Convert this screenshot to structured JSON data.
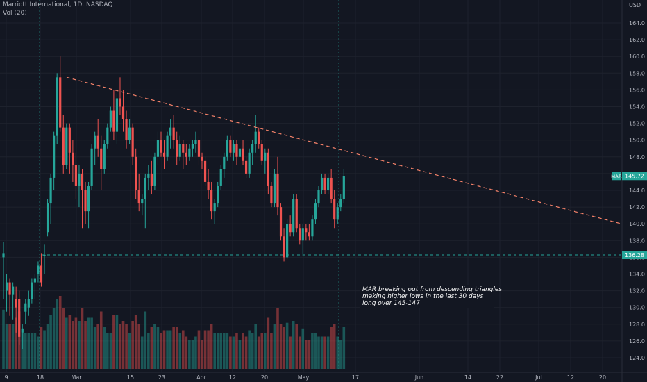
{
  "header": {
    "title": "Marriott International, 1D, NASDAQ",
    "volume_label": "Vol (20)",
    "currency": "USD"
  },
  "annotation": {
    "lines": [
      "MAR breaking out from descending triangles",
      "making higher lows in the last 30 days",
      "long over 145-147"
    ]
  },
  "price_tags": {
    "last_price": "145.72",
    "symbol": "MAR",
    "support": "136.28"
  },
  "colors": {
    "background": "#131722",
    "up": "#26a69a",
    "down": "#ef5350",
    "trendline": "#f7836a",
    "support": "#26a69a",
    "text": "#b2b5be"
  },
  "chart_data": {
    "type": "candlestick",
    "title": "Marriott International, 1D, NASDAQ",
    "y_axis": {
      "label": "USD",
      "range": [
        123,
        166
      ],
      "ticks": [
        124,
        126,
        128,
        130,
        132,
        134,
        136,
        138,
        140,
        142,
        144,
        146,
        148,
        150,
        152,
        154,
        156,
        158,
        160,
        162,
        164
      ]
    },
    "x_axis": {
      "tick_labels": [
        "9",
        "18",
        "Mar",
        "15",
        "23",
        "Apr",
        "12",
        "20",
        "May",
        "17",
        "Jun",
        "14",
        "22",
        "Jul",
        "12",
        "20"
      ]
    },
    "candles": [
      [
        136.0,
        137.8,
        131.0,
        136.5,
        1.0
      ],
      [
        132.0,
        134.0,
        129.5,
        133.0,
        1.0
      ],
      [
        133.0,
        133.5,
        129.0,
        131.5,
        1.0
      ],
      [
        131.5,
        133.0,
        128.5,
        132.5,
        1.0
      ],
      [
        131.0,
        132.5,
        127.0,
        130.0,
        1.0
      ],
      [
        131.0,
        132.0,
        125.5,
        126.5,
        1.0
      ],
      [
        127.0,
        128.0,
        125.0,
        127.5,
        1.0
      ],
      [
        129.5,
        131.0,
        128.0,
        130.5,
        1.0
      ],
      [
        130.0,
        132.0,
        129.0,
        131.0,
        1.0
      ],
      [
        131.0,
        133.5,
        130.5,
        133.0,
        1.0
      ],
      [
        133.0,
        134.0,
        131.0,
        133.5,
        1.0
      ],
      [
        134.0,
        135.5,
        133.0,
        135.0,
        1.0
      ],
      [
        135.0,
        136.5,
        132.5,
        133.0,
        1.0
      ],
      [
        136.2,
        137.5,
        134.0,
        136.3,
        1.0
      ],
      [
        139.0,
        143.0,
        138.5,
        142.5,
        1.0
      ],
      [
        142.5,
        146.0,
        140.0,
        145.5,
        1.0
      ],
      [
        145.5,
        151.0,
        144.0,
        150.5,
        1.0
      ],
      [
        150.5,
        158.0,
        149.5,
        157.5,
        1.0
      ],
      [
        157.5,
        160.0,
        151.0,
        151.5,
        1.0
      ],
      [
        151.5,
        153.0,
        146.0,
        147.0,
        1.0
      ],
      [
        147.0,
        152.0,
        146.5,
        151.5,
        1.0
      ],
      [
        151.5,
        152.0,
        146.0,
        148.5,
        1.0
      ],
      [
        148.5,
        150.0,
        145.0,
        147.0,
        1.0
      ],
      [
        147.0,
        148.5,
        143.0,
        144.5,
        1.0
      ],
      [
        144.5,
        147.0,
        142.0,
        146.0,
        1.0
      ],
      [
        146.0,
        146.5,
        139.5,
        144.0,
        1.0
      ],
      [
        144.0,
        145.0,
        140.0,
        141.5,
        1.0
      ],
      [
        141.5,
        145.0,
        139.5,
        144.5,
        1.0
      ],
      [
        144.5,
        149.5,
        144.0,
        149.0,
        1.0
      ],
      [
        149.0,
        151.0,
        147.0,
        150.5,
        1.0
      ],
      [
        150.5,
        152.5,
        148.0,
        149.0,
        1.0
      ],
      [
        149.0,
        150.5,
        144.0,
        146.5,
        1.0
      ],
      [
        146.5,
        150.0,
        146.0,
        149.5,
        1.0
      ],
      [
        149.5,
        152.0,
        149.0,
        151.5,
        1.0
      ],
      [
        151.5,
        154.0,
        151.0,
        153.5,
        1.0
      ],
      [
        153.5,
        156.0,
        150.0,
        151.0,
        1.0
      ],
      [
        151.0,
        155.5,
        149.5,
        155.0,
        1.0
      ],
      [
        155.0,
        157.5,
        153.0,
        154.0,
        1.0
      ],
      [
        154.0,
        156.0,
        151.0,
        152.5,
        1.0
      ],
      [
        152.5,
        153.5,
        149.0,
        150.0,
        1.0
      ],
      [
        150.0,
        152.5,
        149.5,
        151.5,
        1.0
      ],
      [
        151.5,
        152.0,
        147.0,
        148.0,
        1.0
      ],
      [
        148.0,
        149.0,
        143.0,
        144.0,
        1.0
      ],
      [
        144.0,
        146.0,
        141.5,
        142.5,
        1.0
      ],
      [
        142.5,
        143.5,
        141.0,
        143.0,
        1.0
      ],
      [
        143.0,
        146.0,
        139.5,
        145.5,
        1.0
      ],
      [
        145.5,
        147.0,
        144.0,
        146.0,
        1.0
      ],
      [
        146.0,
        147.5,
        143.5,
        144.5,
        1.0
      ],
      [
        144.5,
        148.5,
        144.0,
        148.0,
        1.0
      ],
      [
        148.0,
        151.0,
        147.0,
        150.0,
        1.0
      ],
      [
        150.0,
        151.0,
        148.0,
        148.5,
        1.0
      ],
      [
        148.5,
        150.0,
        146.5,
        148.0,
        1.0
      ],
      [
        148.0,
        151.0,
        147.5,
        150.5,
        1.0
      ],
      [
        150.5,
        152.5,
        149.0,
        151.5,
        1.0
      ],
      [
        151.5,
        153.0,
        149.0,
        150.0,
        1.0
      ],
      [
        150.0,
        151.0,
        147.0,
        148.0,
        1.0
      ],
      [
        148.0,
        150.5,
        147.5,
        149.5,
        1.0
      ],
      [
        149.5,
        150.0,
        146.5,
        148.5,
        1.0
      ],
      [
        148.5,
        149.5,
        147.0,
        148.0,
        1.0
      ],
      [
        148.0,
        149.5,
        147.5,
        149.0,
        1.0
      ],
      [
        149.0,
        150.0,
        148.0,
        149.5,
        1.0
      ],
      [
        149.5,
        151.0,
        148.5,
        150.0,
        1.0
      ],
      [
        150.0,
        150.5,
        147.0,
        148.0,
        1.0
      ],
      [
        148.0,
        148.5,
        146.5,
        147.5,
        1.0
      ],
      [
        147.5,
        148.0,
        144.5,
        145.0,
        1.0
      ],
      [
        145.0,
        146.5,
        143.0,
        144.0,
        1.0
      ],
      [
        144.0,
        145.0,
        140.5,
        141.5,
        1.0
      ],
      [
        141.5,
        143.0,
        140.0,
        142.5,
        1.0
      ],
      [
        142.5,
        145.0,
        142.0,
        144.5,
        1.0
      ],
      [
        144.5,
        147.0,
        144.0,
        146.5,
        1.0
      ],
      [
        146.5,
        148.5,
        145.5,
        148.0,
        1.0
      ],
      [
        148.0,
        150.5,
        147.5,
        150.0,
        1.0
      ],
      [
        150.0,
        150.5,
        148.0,
        148.5,
        1.0
      ],
      [
        148.5,
        150.0,
        147.5,
        149.5,
        1.0
      ],
      [
        149.5,
        150.0,
        147.0,
        148.0,
        1.0
      ],
      [
        148.0,
        149.5,
        147.5,
        149.0,
        1.0
      ],
      [
        149.0,
        150.0,
        147.0,
        147.5,
        1.0
      ],
      [
        147.5,
        148.0,
        145.5,
        146.0,
        1.0
      ],
      [
        146.0,
        149.0,
        145.5,
        148.5,
        1.0
      ],
      [
        148.5,
        150.0,
        147.0,
        149.5,
        1.0
      ],
      [
        149.5,
        153.0,
        148.5,
        151.0,
        1.0
      ],
      [
        151.0,
        151.5,
        149.0,
        149.5,
        1.0
      ],
      [
        149.5,
        150.0,
        147.0,
        147.5,
        1.0
      ],
      [
        147.5,
        149.0,
        146.0,
        148.5,
        1.0
      ],
      [
        148.5,
        149.0,
        143.5,
        144.5,
        1.0
      ],
      [
        144.5,
        145.0,
        142.0,
        142.5,
        1.0
      ],
      [
        142.5,
        146.5,
        142.0,
        146.0,
        1.0
      ],
      [
        146.0,
        148.0,
        141.0,
        142.0,
        1.0
      ],
      [
        142.0,
        142.5,
        138.0,
        138.5,
        1.0
      ],
      [
        138.5,
        139.5,
        135.5,
        136.0,
        1.0
      ],
      [
        136.0,
        140.5,
        135.8,
        140.0,
        1.0
      ],
      [
        140.0,
        141.0,
        138.5,
        139.0,
        1.0
      ],
      [
        139.0,
        143.5,
        138.5,
        143.0,
        1.0
      ],
      [
        143.0,
        143.5,
        139.0,
        139.5,
        1.0
      ],
      [
        139.5,
        140.0,
        137.5,
        138.0,
        1.0
      ],
      [
        138.0,
        140.0,
        136.2,
        139.5,
        1.0
      ],
      [
        139.5,
        140.0,
        138.0,
        139.0,
        1.0
      ],
      [
        139.0,
        140.0,
        138.0,
        138.5,
        1.0
      ],
      [
        138.5,
        141.0,
        138.0,
        140.5,
        1.0
      ],
      [
        140.5,
        143.0,
        140.0,
        142.5,
        1.0
      ],
      [
        142.5,
        144.5,
        142.0,
        144.0,
        1.0
      ],
      [
        144.0,
        146.0,
        143.5,
        145.5,
        1.0
      ],
      [
        145.5,
        146.0,
        143.5,
        144.0,
        1.0
      ],
      [
        144.0,
        146.0,
        143.5,
        145.5,
        1.0
      ],
      [
        145.5,
        146.5,
        142.5,
        143.0,
        1.0
      ],
      [
        143.0,
        144.0,
        139.5,
        140.5,
        1.0
      ],
      [
        140.5,
        142.5,
        140.0,
        142.0,
        1.0
      ],
      [
        142.0,
        143.5,
        141.5,
        143.0,
        1.0
      ],
      [
        143.0,
        146.5,
        142.5,
        145.7,
        1.0
      ]
    ],
    "volume": [],
    "trendline": {
      "from": [
        "Feb 21",
        157.5
      ],
      "to": [
        "Jul 26",
        140.0
      ],
      "style": "dashed"
    },
    "support_line": {
      "price": 136.28,
      "style": "dashed"
    }
  }
}
